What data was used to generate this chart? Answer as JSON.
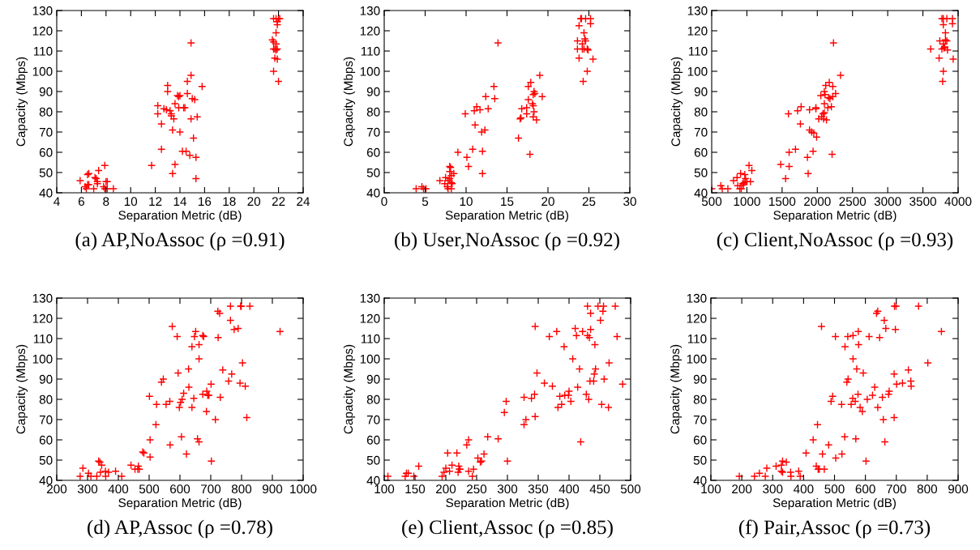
{
  "chart_data": [
    {
      "type": "scatter",
      "title": "(a) AP,NoAssoc (ρ =0.91)",
      "xlabel": "Separation Metric (dB)",
      "ylabel": "Capacity (Mbps)",
      "xlim": [
        4,
        24
      ],
      "xticks": [
        4,
        6,
        8,
        10,
        12,
        14,
        16,
        18,
        20,
        22,
        24
      ],
      "ylim": [
        40,
        130
      ],
      "yticks": [
        40,
        50,
        60,
        70,
        80,
        90,
        100,
        110,
        120,
        130
      ],
      "marker": "cross",
      "series": [
        {
          "color": "#ff0000",
          "x": [
            5.9,
            6.3,
            6.4,
            6.5,
            6.6,
            6.5,
            6.6,
            7.0,
            7.1,
            7.2,
            7.3,
            7.3,
            7.4,
            7.8,
            7.9,
            7.9,
            8.0,
            8.1,
            8.1,
            8.6,
            11.7,
            12.2,
            12.2,
            12.5,
            12.5,
            12.7,
            12.9,
            13.0,
            13.0,
            13.2,
            13.3,
            13.3,
            13.4,
            13.4,
            13.5,
            13.6,
            13.6,
            13.8,
            13.9,
            13.9,
            14.0,
            14.0,
            14.2,
            14.3,
            14.4,
            14.5,
            14.6,
            14.6,
            14.8,
            14.9,
            14.9,
            14.9,
            15.0,
            15.1,
            15.2,
            15.3,
            15.3,
            15.4,
            15.8,
            21.6,
            21.8,
            22.0,
            22.1,
            21.9,
            21.9,
            21.8,
            21.5,
            21.6,
            21.8,
            21.7,
            21.8,
            21.9,
            21.7,
            21.9,
            21.6,
            22.0,
            21.6
          ],
          "values": [
            46,
            43,
            42,
            44,
            44,
            49,
            49.5,
            42,
            47.5,
            47,
            44.5,
            45.5,
            51,
            43,
            53.5,
            42,
            45.5,
            42,
            45.5,
            42,
            53.5,
            83,
            79,
            74,
            61.5,
            81.5,
            81,
            93,
            90,
            80.5,
            79,
            78,
            71,
            49.5,
            76.5,
            84,
            54,
            88,
            82,
            87.5,
            70,
            88,
            60.5,
            82,
            82,
            60.5,
            95,
            89,
            58.5,
            98,
            76.5,
            114,
            86.5,
            67,
            86,
            57.5,
            47,
            77.5,
            92.5,
            126,
            126,
            126,
            126,
            124.5,
            123,
            119,
            115.5,
            114.5,
            113.5,
            111,
            110.5,
            111,
            106.5,
            106,
            100,
            95,
            111
          ]
        }
      ]
    },
    {
      "type": "scatter",
      "title": "(b) User,NoAssoc (ρ =0.92)",
      "xlabel": "Separation Metric (dB)",
      "ylabel": "Capacity (Mbps)",
      "xlim": [
        0,
        30
      ],
      "xticks": [
        0,
        5,
        10,
        15,
        20,
        25,
        30
      ],
      "ylim": [
        40,
        130
      ],
      "yticks": [
        40,
        50,
        60,
        70,
        80,
        90,
        100,
        110,
        120,
        130
      ],
      "marker": "cross",
      "series": [
        {
          "color": "#ff0000",
          "x": [
            3.9,
            4.6,
            4.8,
            5.1,
            6.8,
            7.5,
            7.4,
            7.7,
            7.8,
            7.8,
            8.0,
            8.0,
            8.1,
            8.2,
            8.2,
            8.3,
            8.2,
            8.5,
            8.0,
            9.0,
            9.9,
            10.1,
            10.3,
            10.8,
            11.0,
            11.1,
            11.3,
            11.7,
            11.9,
            12.0,
            12.0,
            12.3,
            12.4,
            12.7,
            13.4,
            13.5,
            13.9,
            16.4,
            16.6,
            16.7,
            16.8,
            17.4,
            17.4,
            17.6,
            17.6,
            17.8,
            17.9,
            18.1,
            18.2,
            18.2,
            18.3,
            18.3,
            18.4,
            18.2,
            18.6,
            19.0,
            19.3,
            24.0,
            24.1,
            24.6,
            25.2,
            25.2,
            23.8,
            24.4,
            24.5,
            24.6,
            23.6,
            24.2,
            24.8,
            23.6,
            24.4,
            24.2,
            24.9,
            23.8,
            25.5,
            24.8,
            24.3
          ],
          "values": [
            42,
            43,
            42,
            42,
            46,
            47.5,
            44.5,
            43,
            42,
            46,
            53,
            50.5,
            52.5,
            48.5,
            45,
            44.5,
            42,
            49.5,
            47,
            60,
            79,
            57.5,
            53,
            61.5,
            80.5,
            73.5,
            82.5,
            81,
            70,
            60.5,
            49.5,
            71,
            87.5,
            81.5,
            92.5,
            86.5,
            114,
            67,
            76.5,
            77,
            81.5,
            82,
            79,
            92.5,
            86,
            59,
            94.5,
            84,
            83,
            88.5,
            90,
            80,
            89,
            77.5,
            76,
            98,
            87.5,
            126,
            126,
            126,
            126,
            123.5,
            122.5,
            119,
            116,
            115,
            115,
            113.5,
            111,
            111,
            111,
            111,
            110.5,
            106.5,
            106,
            100,
            95
          ]
        }
      ]
    },
    {
      "type": "scatter",
      "title": "(c) Client,NoAssoc (ρ =0.93)",
      "xlabel": "Separation Metric (dB)",
      "ylabel": "Capacity (Mbps)",
      "xlim": [
        500,
        4000
      ],
      "xticks": [
        500,
        1000,
        1500,
        2000,
        2500,
        3000,
        3500,
        4000
      ],
      "ylim": [
        40,
        130
      ],
      "yticks": [
        40,
        50,
        60,
        70,
        80,
        90,
        100,
        110,
        120,
        130
      ],
      "marker": "cross",
      "series": [
        {
          "color": "#ff0000",
          "x": [
            500,
            630,
            650,
            730,
            810,
            860,
            870,
            910,
            920,
            900,
            940,
            950,
            960,
            970,
            980,
            1000,
            1030,
            1050,
            1070,
            1480,
            1550,
            1590,
            1600,
            1600,
            1690,
            1720,
            1760,
            1770,
            1860,
            1870,
            1890,
            1890,
            1920,
            1940,
            1950,
            1980,
            1980,
            1990,
            2020,
            2050,
            2060,
            2080,
            2090,
            2100,
            2100,
            2100,
            2110,
            2120,
            2130,
            2150,
            2160,
            2170,
            2180,
            2200,
            2210,
            2220,
            2220,
            2230,
            2260,
            2330,
            3610,
            3730,
            3740,
            3770,
            3790,
            3840,
            3920,
            3920,
            3790,
            3820,
            3820,
            3840,
            3790,
            3810,
            3770,
            3800,
            3850,
            3930,
            3790,
            3780
          ],
          "values": [
            42,
            43.5,
            42,
            42,
            46,
            47.5,
            43.5,
            49.5,
            42,
            42,
            44.5,
            44,
            45,
            49,
            47,
            45.5,
            53.5,
            45.5,
            51,
            54,
            47,
            79,
            60,
            53,
            61.5,
            80.5,
            74,
            82.5,
            57.5,
            49.5,
            81,
            71,
            70,
            60.5,
            69.5,
            81.5,
            82,
            67.5,
            76.5,
            88,
            77.5,
            79,
            76.5,
            84,
            79.5,
            90,
            88.5,
            93,
            76,
            82,
            87,
            94.5,
            86.5,
            82.5,
            59,
            87.5,
            92.5,
            114,
            89,
            98,
            111,
            106.5,
            115,
            126,
            126,
            126,
            126,
            123.5,
            123,
            119,
            115.5,
            115,
            113.5,
            112,
            111,
            111.5,
            110.5,
            106,
            100,
            95
          ]
        }
      ]
    },
    {
      "type": "scatter",
      "title": "(d) AP,Assoc (ρ =0.78)",
      "xlabel": "Separation Metric (dB)",
      "ylabel": "Capacity (Mbps)",
      "xlim": [
        200,
        1000
      ],
      "xticks": [
        200,
        300,
        400,
        500,
        600,
        700,
        800,
        900,
        1000
      ],
      "ylim": [
        40,
        130
      ],
      "yticks": [
        40,
        50,
        60,
        70,
        80,
        90,
        100,
        110,
        120,
        130
      ],
      "marker": "cross",
      "series": [
        {
          "color": "#ff0000",
          "x": [
            276,
            285,
            303,
            311,
            330,
            336,
            340,
            346,
            342,
            358,
            359,
            368,
            391,
            411,
            441,
            454,
            463,
            465,
            468,
            479,
            483,
            503,
            503,
            501,
            524,
            522,
            540,
            546,
            555,
            567,
            568,
            575,
            591,
            594,
            598,
            602,
            607,
            605,
            612,
            621,
            629,
            628,
            639,
            639,
            645,
            647,
            651,
            657,
            662,
            662,
            662,
            674,
            677,
            674,
            686,
            687,
            690,
            694,
            702,
            701,
            715,
            723,
            729,
            724,
            731,
            739,
            758,
            764,
            764,
            768,
            776,
            789,
            795,
            797,
            799,
            803,
            812,
            817,
            827,
            925
          ],
          "values": [
            42,
            46,
            43.5,
            42,
            42,
            49.5,
            49,
            47.5,
            44,
            44.5,
            42,
            44,
            44.5,
            42,
            47.5,
            45.5,
            45.5,
            47,
            45.5,
            54,
            53.5,
            51.5,
            60,
            81.5,
            77.5,
            67.5,
            88.5,
            90,
            77.5,
            79,
            57.5,
            116,
            111,
            93,
            76,
            78.5,
            80,
            61.5,
            83,
            53,
            86,
            95,
            76,
            106,
            80.5,
            111,
            113.5,
            60.5,
            59,
            100,
            107,
            111.5,
            111,
            82.5,
            74,
            84,
            82,
            82,
            49.5,
            87.5,
            70,
            123.5,
            122.5,
            110.5,
            81,
            94.5,
            89,
            126,
            119,
            92.5,
            114.5,
            115,
            88,
            126,
            126,
            98,
            86.5,
            71,
            126,
            113.5
          ]
        }
      ]
    },
    {
      "type": "scatter",
      "title": "(e) Client,Assoc (ρ =0.85)",
      "xlabel": "Separation Metric (dB)",
      "ylabel": "Capacity (Mbps)",
      "xlim": [
        100,
        500
      ],
      "xticks": [
        100,
        150,
        200,
        250,
        300,
        350,
        400,
        450,
        500
      ],
      "ylim": [
        40,
        130
      ],
      "yticks": [
        40,
        50,
        60,
        70,
        80,
        90,
        100,
        110,
        120,
        130
      ],
      "marker": "cross",
      "series": [
        {
          "color": "#ff0000",
          "x": [
            106,
            134,
            136,
            139,
            148,
            156,
            194,
            197,
            200,
            203,
            206,
            210,
            220,
            221,
            222,
            223,
            218,
            234,
            237,
            237,
            243,
            245,
            252,
            256,
            258,
            262,
            268,
            285,
            295,
            298,
            300,
            327,
            330,
            327,
            339,
            344,
            345,
            345,
            348,
            360,
            368,
            373,
            380,
            382,
            385,
            388,
            392,
            393,
            400,
            399,
            403,
            406,
            410,
            412,
            414,
            417,
            419,
            422,
            428,
            430,
            430,
            432,
            433,
            434,
            435,
            435,
            440,
            441,
            443,
            442,
            447,
            451,
            453,
            455,
            456,
            457,
            464,
            465,
            475,
            478,
            487
          ],
          "values": [
            42,
            42,
            43.5,
            43.5,
            42,
            47,
            42,
            44,
            46,
            53.5,
            44.5,
            47.5,
            44,
            47,
            45.5,
            45.5,
            53.5,
            57.5,
            60,
            44.5,
            42,
            45.5,
            51,
            49,
            49.5,
            53,
            61.5,
            60.5,
            73.5,
            79,
            49.5,
            67.5,
            70,
            81,
            80.5,
            82.5,
            71.5,
            116,
            93,
            88,
            111,
            86.5,
            113.5,
            76,
            81.5,
            77.5,
            106,
            82,
            84,
            82,
            79,
            100,
            115,
            111.5,
            86,
            95,
            59,
            113.5,
            82.5,
            126,
            111.5,
            80,
            110.5,
            89,
            122.5,
            114.5,
            89,
            92.5,
            95,
            107,
            126,
            119,
            77.5,
            123.5,
            126,
            90,
            76,
            98,
            126,
            111,
            87.5
          ]
        }
      ]
    },
    {
      "type": "scatter",
      "title": "(f) Pair,Assoc (ρ =0.73)",
      "xlabel": "Separation Metric (dB)",
      "ylabel": "Capacity (Mbps)",
      "xlim": [
        100,
        900
      ],
      "xticks": [
        100,
        200,
        300,
        400,
        500,
        600,
        700,
        800,
        900
      ],
      "ylim": [
        40,
        130
      ],
      "yticks": [
        40,
        50,
        60,
        70,
        80,
        90,
        100,
        110,
        120,
        130
      ],
      "marker": "cross",
      "series": [
        {
          "color": "#ff0000",
          "x": [
            192,
            241,
            257,
            276,
            281,
            311,
            328,
            332,
            328,
            332,
            344,
            358,
            359,
            384,
            389,
            408,
            431,
            441,
            445,
            447,
            451,
            458,
            461,
            467,
            481,
            489,
            494,
            503,
            504,
            523,
            524,
            533,
            534,
            540,
            544,
            543,
            554,
            559,
            560,
            560,
            567,
            569,
            572,
            576,
            577,
            578,
            583,
            590,
            593,
            602,
            606,
            612,
            623,
            630,
            636,
            640,
            640,
            646,
            655,
            658,
            661,
            663,
            666,
            675,
            677,
            693,
            693,
            694,
            697,
            699,
            701,
            720,
            739,
            747,
            748,
            772,
            802,
            846
          ],
          "values": [
            42,
            42,
            43.5,
            42,
            46,
            47,
            47.5,
            49.5,
            44.5,
            44,
            49,
            44,
            42,
            44.5,
            42,
            53.5,
            60,
            47,
            67.5,
            45.5,
            45.5,
            116,
            53,
            45.5,
            57.5,
            79,
            81.5,
            111,
            51,
            77.5,
            53,
            61.5,
            106,
            88.5,
            90,
            111,
            77.5,
            80.5,
            111.5,
            100,
            79,
            60.5,
            95,
            82.5,
            113.5,
            107,
            76,
            74,
            93,
            49.5,
            80,
            111,
            82,
            86,
            122.5,
            123.5,
            76,
            110.5,
            81,
            70,
            119,
            59,
            115,
            82.5,
            84,
            71,
            92.5,
            126,
            114.5,
            126,
            87.5,
            88,
            94.5,
            89,
            86.5,
            126,
            98,
            113.5
          ]
        }
      ]
    }
  ]
}
